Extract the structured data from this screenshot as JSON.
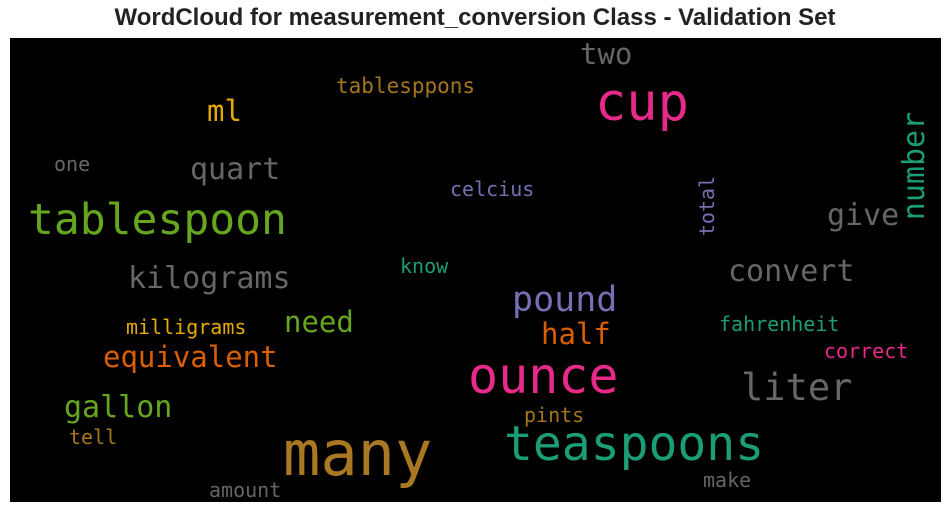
{
  "title": "WordCloud for measurement_conversion Class - Validation Set",
  "chart_data": {
    "type": "wordcloud",
    "title": "WordCloud for measurement_conversion Class - Validation Set",
    "background": "#000000",
    "words": [
      {
        "text": "many",
        "color": "#a87822"
      },
      {
        "text": "teaspoons",
        "color": "#1b9e77"
      },
      {
        "text": "ounce",
        "color": "#e7298a"
      },
      {
        "text": "cup",
        "color": "#e7298a"
      },
      {
        "text": "tablespoon",
        "color": "#66a61e"
      },
      {
        "text": "liter",
        "color": "#666666"
      },
      {
        "text": "pound",
        "color": "#7570b3"
      },
      {
        "text": "kilograms",
        "color": "#666666"
      },
      {
        "text": "convert",
        "color": "#666666"
      },
      {
        "text": "number",
        "color": "#1b9e77",
        "rotate": true
      },
      {
        "text": "equivalent",
        "color": "#d95f02"
      },
      {
        "text": "gallon",
        "color": "#66a61e"
      },
      {
        "text": "half",
        "color": "#d95f02"
      },
      {
        "text": "quart",
        "color": "#666666"
      },
      {
        "text": "give",
        "color": "#666666"
      },
      {
        "text": "need",
        "color": "#66a61e"
      },
      {
        "text": "two",
        "color": "#666666"
      },
      {
        "text": "ml",
        "color": "#e6ab02"
      },
      {
        "text": "tablesppons",
        "color": "#a6761d"
      },
      {
        "text": "fahrenheit",
        "color": "#1b9e77"
      },
      {
        "text": "milligrams",
        "color": "#e6ab02"
      },
      {
        "text": "celcius",
        "color": "#7570b3"
      },
      {
        "text": "total",
        "color": "#7570b3",
        "rotate": true
      },
      {
        "text": "correct",
        "color": "#e7298a"
      },
      {
        "text": "know",
        "color": "#1b9e77"
      },
      {
        "text": "pints",
        "color": "#a6761d"
      },
      {
        "text": "tell",
        "color": "#a6761d"
      },
      {
        "text": "amount",
        "color": "#666666"
      },
      {
        "text": "make",
        "color": "#666666"
      },
      {
        "text": "one",
        "color": "#666666"
      }
    ]
  }
}
